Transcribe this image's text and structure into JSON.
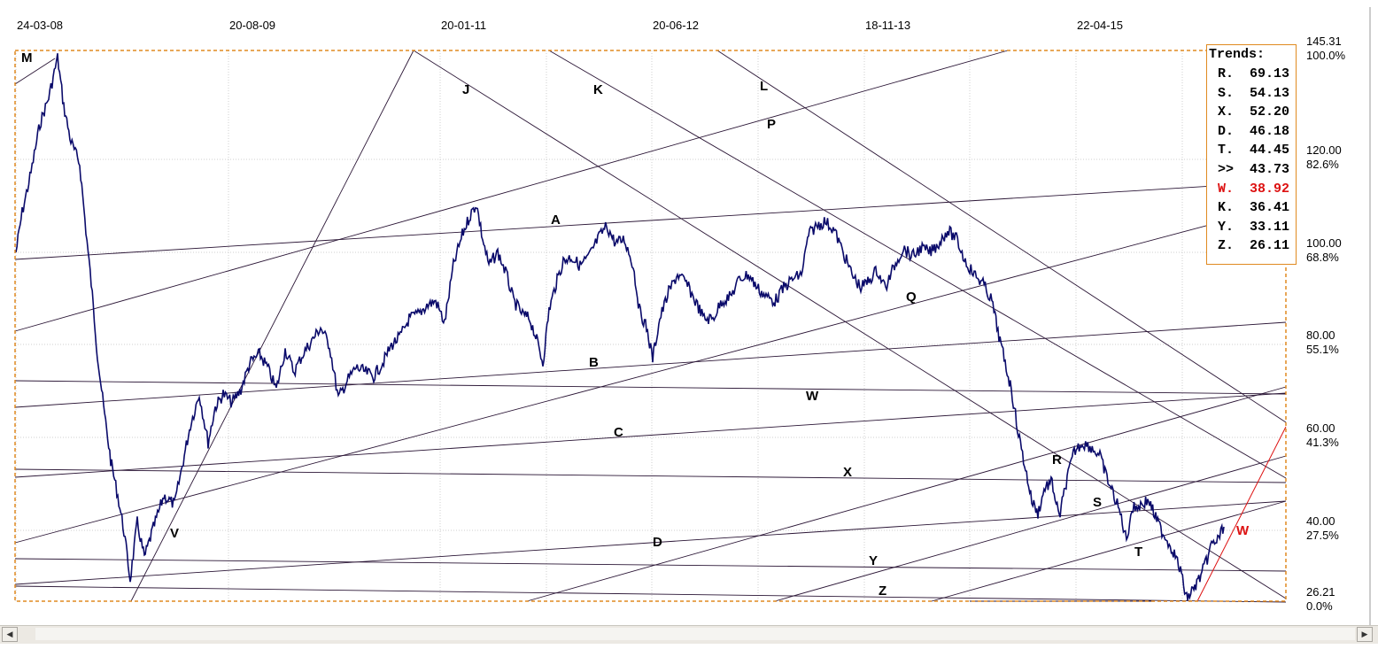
{
  "chart_data": {
    "type": "line",
    "x_tick_labels": [
      "24-03-08",
      "20-08-09",
      "20-01-11",
      "20-06-12",
      "18-11-13",
      "22-04-15"
    ],
    "y_price_labels": [
      "145.31",
      "120.00",
      "100.00",
      "80.00",
      "60.00",
      "40.00",
      "26.21"
    ],
    "y_percent_labels": [
      "100.0%",
      "82.6%",
      "68.8%",
      "55.1%",
      "41.3%",
      "27.5%",
      "0.0%"
    ],
    "ylim": [
      26.21,
      145.31
    ],
    "grid": true,
    "trend_lines": [
      "M",
      "J",
      "K",
      "L",
      "P",
      "A",
      "Q",
      "B",
      "W",
      "C",
      "R",
      "X",
      "S",
      "V",
      "D",
      "T",
      "Y",
      "Z"
    ],
    "legend": {
      "title": "Trends:",
      "placement": "top-right",
      "entries": [
        {
          "name": "R.",
          "value": "69.13"
        },
        {
          "name": "S.",
          "value": "54.13"
        },
        {
          "name": "X.",
          "value": "52.20"
        },
        {
          "name": "D.",
          "value": "46.18"
        },
        {
          "name": "T.",
          "value": "44.45"
        },
        {
          "name": ">>",
          "value": "43.73"
        },
        {
          "name": "W.",
          "value": "38.92",
          "highlight": true
        },
        {
          "name": "K.",
          "value": "36.41"
        },
        {
          "name": "Y.",
          "value": "33.11"
        },
        {
          "name": "Z.",
          "value": "26.11"
        }
      ]
    },
    "active_line_label": "W",
    "colors": {
      "price": "#0a0a6a",
      "active": "#dd1111",
      "frame": "#e08a20",
      "grid": "#cfcfcf",
      "lines": "#2a1535"
    }
  }
}
